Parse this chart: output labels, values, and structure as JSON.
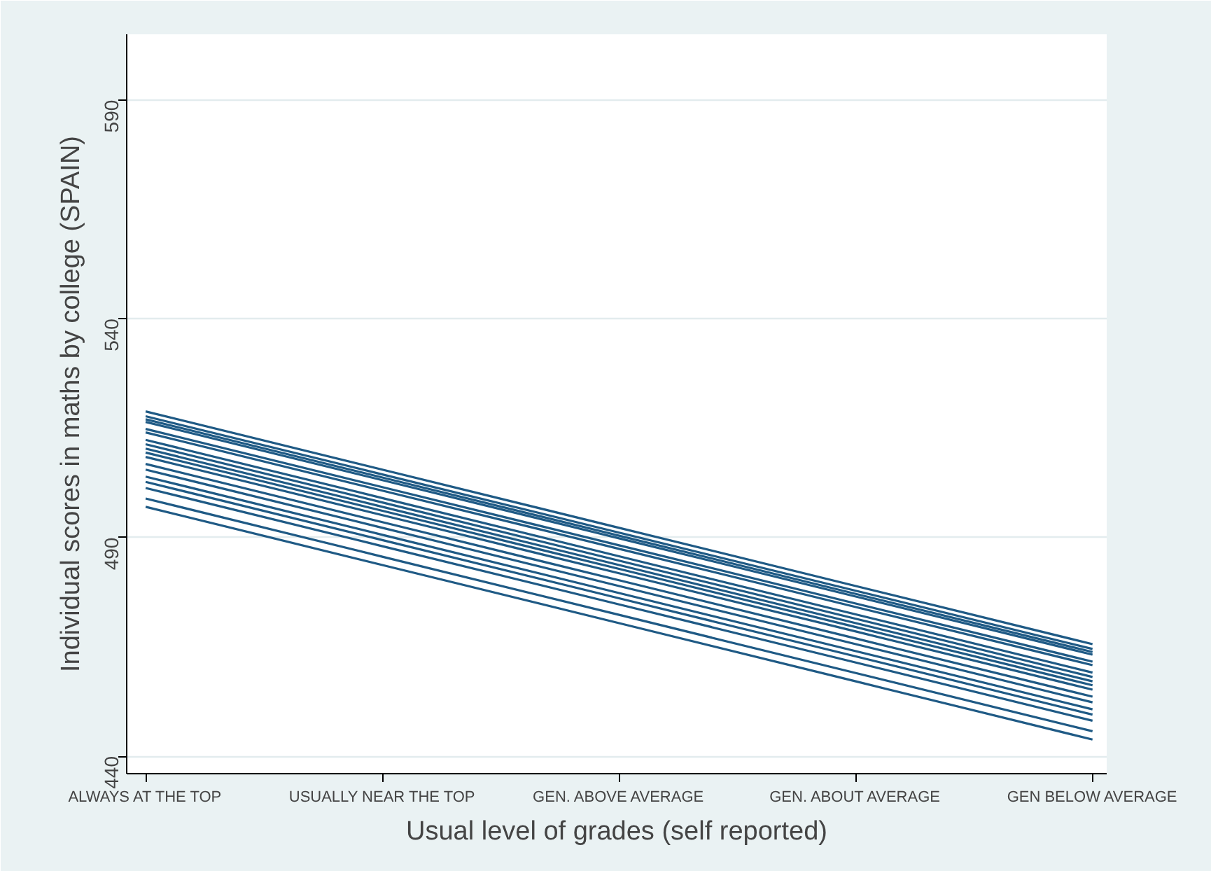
{
  "chart_data": {
    "type": "line",
    "xlabel": "Usual level of grades (self reported)",
    "ylabel": "Individual scores in maths by college (SPAIN)",
    "categories": [
      "ALWAYS AT THE TOP",
      "USUALLY NEAR THE TOP",
      "GEN. ABOVE AVERAGE",
      "GEN. ABOUT AVERAGE",
      "GEN BELOW AVERAGE"
    ],
    "ylim": [
      436,
      605
    ],
    "yticks": [
      440,
      490,
      540,
      590
    ],
    "grid": "y",
    "marker": "none",
    "line_style": "solid",
    "series": [
      {
        "color": "#1f5a85",
        "values": [
          518.8,
          505.5,
          492.2,
          478.9,
          465.6
        ]
      },
      {
        "color": "#1f5a85",
        "values": [
          517.7,
          504.4,
          491.1,
          477.8,
          464.5
        ]
      },
      {
        "color": "#1f5a85",
        "values": [
          517.0,
          503.7,
          490.4,
          477.1,
          463.8
        ]
      },
      {
        "color": "#1f5a85",
        "values": [
          516.4,
          503.1,
          489.8,
          476.5,
          463.2
        ]
      },
      {
        "color": "#1f5a85",
        "values": [
          514.8,
          501.5,
          488.2,
          474.9,
          461.6
        ]
      },
      {
        "color": "#1f5a85",
        "values": [
          514.0,
          500.7,
          487.4,
          474.1,
          460.8
        ]
      },
      {
        "color": "#1f5a85",
        "values": [
          512.3,
          499.0,
          485.7,
          472.4,
          459.1
        ]
      },
      {
        "color": "#1f5a85",
        "values": [
          511.3,
          498.0,
          484.7,
          471.4,
          458.1
        ]
      },
      {
        "color": "#1f5a85",
        "values": [
          510.3,
          497.0,
          483.7,
          470.4,
          457.1
        ]
      },
      {
        "color": "#1f5a85",
        "values": [
          509.4,
          496.1,
          482.8,
          469.5,
          456.2
        ]
      },
      {
        "color": "#1f5a85",
        "values": [
          508.4,
          495.1,
          481.8,
          468.5,
          455.2
        ]
      },
      {
        "color": "#1f5a85",
        "values": [
          506.8,
          493.5,
          480.2,
          466.9,
          453.6
        ]
      },
      {
        "color": "#1f5a85",
        "values": [
          505.5,
          492.2,
          478.9,
          465.6,
          452.3
        ]
      },
      {
        "color": "#1f5a85",
        "values": [
          503.9,
          490.6,
          477.3,
          464.0,
          450.7
        ]
      },
      {
        "color": "#1f5a85",
        "values": [
          502.7,
          489.4,
          476.1,
          462.8,
          449.5
        ]
      },
      {
        "color": "#1f5a85",
        "values": [
          501.3,
          488.0,
          474.7,
          461.4,
          448.1
        ]
      },
      {
        "color": "#1f5a85",
        "values": [
          498.9,
          485.6,
          472.3,
          459.0,
          445.7
        ]
      },
      {
        "color": "#1f5a85",
        "values": [
          497.0,
          483.7,
          470.4,
          457.1,
          443.8
        ]
      }
    ]
  }
}
